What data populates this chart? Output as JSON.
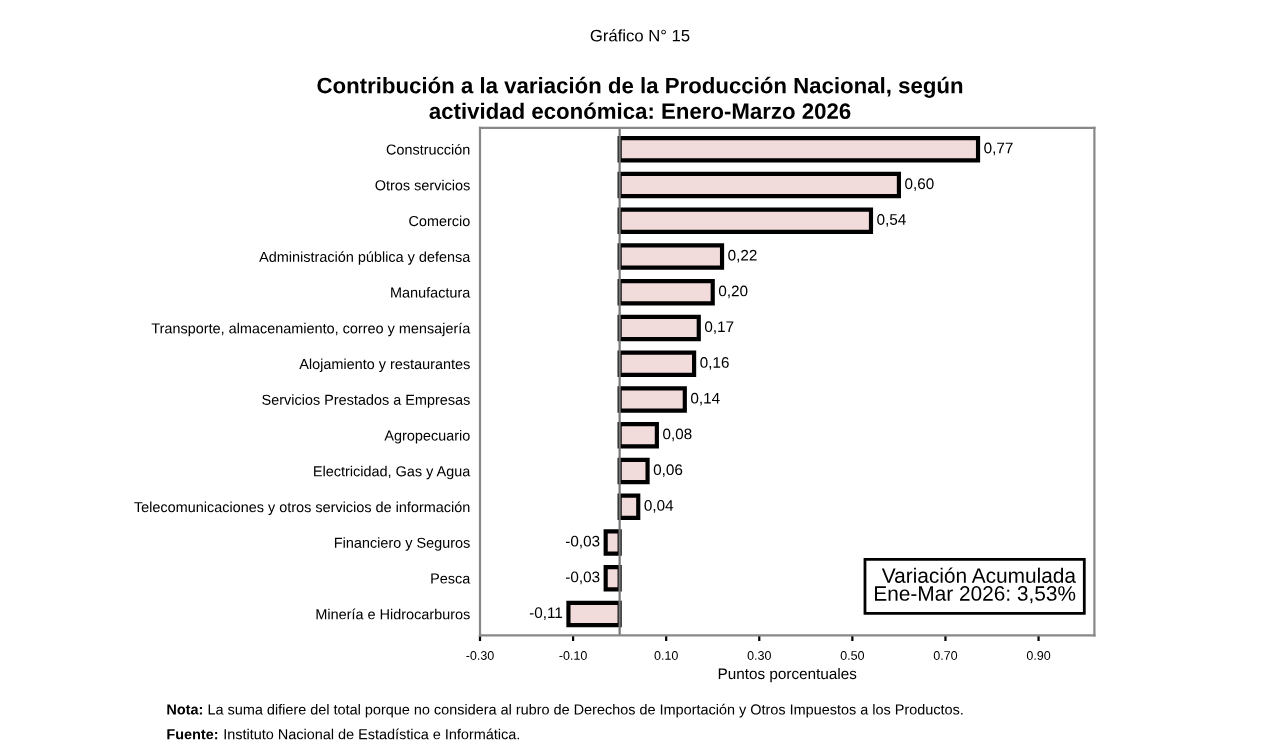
{
  "chart_data": {
    "type": "bar",
    "orientation": "horizontal",
    "subtitle": "Gráfico N° 15",
    "title": "Contribución a la variación de la Producción Nacional, según\nactividad económica: Enero-Marzo 2026",
    "xlabel": "Puntos porcentuales",
    "categories": [
      "Construcción",
      "Otros servicios",
      "Comercio",
      "Administración pública y defensa",
      "Manufactura",
      "Transporte, almacenamiento, correo y mensajería",
      "Alojamiento y restaurantes",
      "Servicios Prestados a Empresas",
      "Agropecuario",
      "Electricidad, Gas y Agua",
      "Telecomunicaciones y otros servicios de información",
      "Financiero y Seguros",
      "Pesca",
      "Minería e Hidrocarburos"
    ],
    "values": [
      0.77,
      0.6,
      0.54,
      0.22,
      0.2,
      0.17,
      0.16,
      0.14,
      0.08,
      0.06,
      0.04,
      -0.03,
      -0.03,
      -0.11
    ],
    "value_labels": [
      "0,77",
      "0,60",
      "0,54",
      "0,22",
      "0,20",
      "0,17",
      "0,16",
      "0,14",
      "0,08",
      "0,06",
      "0,04",
      "-0,03",
      "-0,03",
      "-0,11"
    ],
    "color": "#f2dcdb",
    "xlim": [
      -0.3,
      1.02
    ],
    "xticks": [
      {
        "value": -0.3,
        "label": "-0.30"
      },
      {
        "value": -0.1,
        "label": "-0.10"
      },
      {
        "value": 0.1,
        "label": "0.10"
      },
      {
        "value": 0.3,
        "label": "0.30"
      },
      {
        "value": 0.5,
        "label": "0.50"
      },
      {
        "value": 0.7,
        "label": "0.70"
      },
      {
        "value": 0.9,
        "label": "0.90"
      }
    ],
    "annotations": [
      "Variación Acumulada\nEne-Mar 2026: 3,53%",
      "Nota: La suma difiere del total porque no considera al rubro de Derechos de Importación y Otros Impuestos a los Productos.",
      "Fuente: Instituto Nacional de Estadística e Informática."
    ]
  }
}
